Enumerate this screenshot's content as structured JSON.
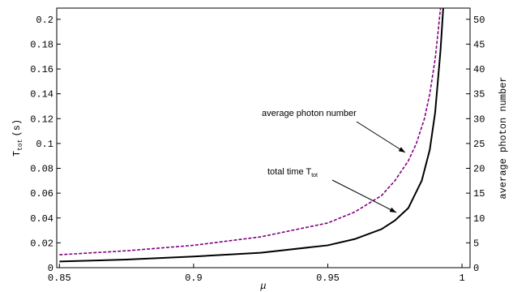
{
  "chart_data": {
    "type": "line",
    "xlabel": "μ",
    "ylabel": {
      "text": "T",
      "sub": "tot",
      "unit": "(s)"
    },
    "y2label": "average photon number",
    "xlim": [
      0.849,
      1.003
    ],
    "xticks": [
      0.85,
      0.9,
      0.95,
      1
    ],
    "ylim": [
      0,
      0.209
    ],
    "yticks": [
      0,
      0.02,
      0.04,
      0.06,
      0.08,
      0.1,
      0.12,
      0.14,
      0.16,
      0.18,
      0.2
    ],
    "y2lim": [
      0,
      52.25
    ],
    "y2ticks": [
      0,
      5,
      10,
      15,
      20,
      25,
      30,
      35,
      40,
      45,
      50
    ],
    "series": [
      {
        "name": "total time T_tot",
        "color": "#000000",
        "dash": false,
        "x": [
          0.85,
          0.875,
          0.9,
          0.925,
          0.95,
          0.96,
          0.97,
          0.975,
          0.98,
          0.985,
          0.988,
          0.99,
          0.992,
          0.993
        ],
        "values": [
          0.005,
          0.0065,
          0.009,
          0.012,
          0.018,
          0.023,
          0.031,
          0.038,
          0.048,
          0.07,
          0.095,
          0.125,
          0.175,
          0.209
        ]
      },
      {
        "name": "average photon number",
        "color": "#800080",
        "dash": true,
        "axis": "y2",
        "x": [
          0.85,
          0.875,
          0.9,
          0.925,
          0.95,
          0.96,
          0.97,
          0.975,
          0.98,
          0.983,
          0.986,
          0.988,
          0.99,
          0.991,
          0.992
        ],
        "values": [
          2.6,
          3.4,
          4.5,
          6.2,
          9,
          11.2,
          14.5,
          17.5,
          21.5,
          25,
          30,
          35,
          42,
          47,
          52.25
        ]
      }
    ],
    "annotations": [
      {
        "text": "average photon number"
      },
      {
        "text": "total time T",
        "sub": "tot"
      }
    ]
  }
}
